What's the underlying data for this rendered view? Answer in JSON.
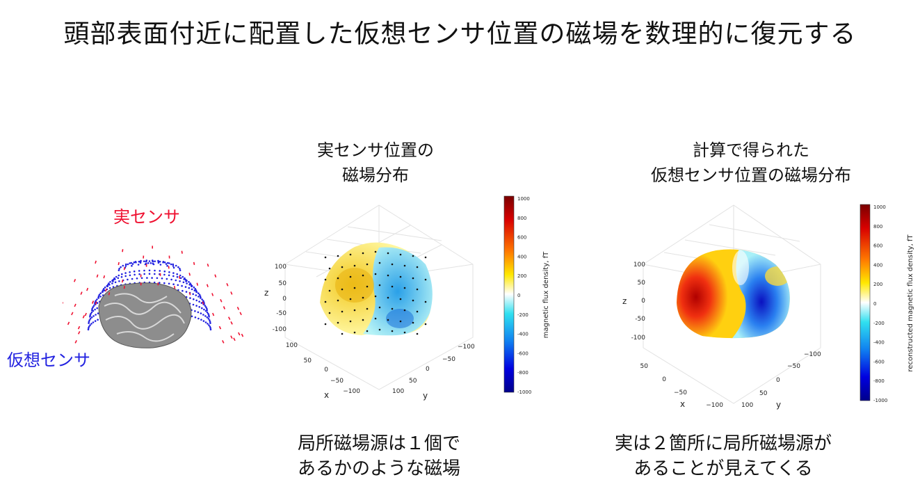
{
  "title": "頭部表面付近に配置した仮想センサ位置の磁場を数理的に復元する",
  "left": {
    "real_sensor_label": "実センサ",
    "virtual_sensor_label": "仮想センサ"
  },
  "middle": {
    "title_lines": [
      "実センサ位置の",
      "磁場分布"
    ],
    "caption_lines": [
      "局所磁場源は１個で",
      "あるかのような磁場"
    ],
    "z_label": "z",
    "x_label": "x",
    "y_label": "y",
    "z_ticks": [
      "100",
      "50",
      "0",
      "-50",
      "-100"
    ],
    "x_ticks": [
      "100",
      "50",
      "0",
      "−50",
      "−100"
    ],
    "y_ticks": [
      "−100",
      "−50",
      "0",
      "50",
      "100"
    ],
    "colorbar_label": "magnetic flux density, fT",
    "colorbar_ticks": [
      "1000",
      "800",
      "600",
      "400",
      "200",
      "0",
      "-200",
      "-400",
      "-600",
      "-800",
      "-1000"
    ]
  },
  "right": {
    "title_lines": [
      "計算で得られた",
      "仮想センサ位置の磁場分布"
    ],
    "caption_lines": [
      "実は２箇所に局所磁場源が",
      "あることが見えてくる"
    ],
    "z_label": "z",
    "x_label": "x",
    "y_label": "y",
    "z_ticks": [
      "100",
      "50",
      "0",
      "-50",
      "-100"
    ],
    "x_ticks": [
      "50",
      "0",
      "−50",
      "−100"
    ],
    "y_ticks": [
      "−100",
      "−50",
      "0",
      "50",
      "100"
    ],
    "colorbar_label": "reconstructed magnetic flux density, fT",
    "colorbar_ticks": [
      "1000",
      "800",
      "600",
      "400",
      "200",
      "0",
      "-200",
      "-400",
      "-600",
      "-800",
      "-1000"
    ]
  },
  "colors": {
    "real_sensor": "#ef1030",
    "virtual_sensor": "#2222e0"
  }
}
